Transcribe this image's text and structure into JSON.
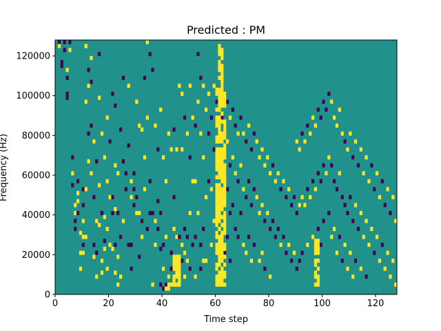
{
  "chart_data": {
    "type": "heatmap",
    "title": "Predicted : PM",
    "xlabel": "Time step",
    "ylabel": "Frequency (Hz)",
    "xlim": [
      0,
      128
    ],
    "ylim": [
      0,
      128000
    ],
    "x_ticks": [
      0,
      20,
      40,
      60,
      80,
      100,
      120
    ],
    "x_tick_labels": [
      "0",
      "20",
      "40",
      "60",
      "80",
      "100",
      "120"
    ],
    "y_ticks": [
      0,
      20000,
      40000,
      60000,
      80000,
      100000,
      120000
    ],
    "y_tick_labels": [
      "0",
      "20000",
      "40000",
      "60000",
      "80000",
      "100000",
      "120000"
    ],
    "n_time_steps": 128,
    "n_freq_bins": 64,
    "colormap": "viridis",
    "values_legend": {
      "low": 0,
      "mid": 1,
      "high": 2
    },
    "colors": {
      "low": "#440154",
      "mid": "#21918c",
      "high": "#fde725"
    },
    "background_value": 1,
    "cells": [
      {
        "t": 1,
        "f": [
          63,
          62
        ]
      },
      {
        "t": 2,
        "f": [
          58,
          57
        ]
      },
      {
        "t": 3,
        "f": [
          63,
          61
        ]
      },
      {
        "t": 4,
        "f": [
          56,
          54,
          50,
          49
        ]
      },
      {
        "t": 5,
        "f": [
          63,
          61
        ]
      },
      {
        "t": 6,
        "f": [
          34,
          30,
          27
        ]
      },
      {
        "t": 7,
        "f": [
          22,
          20,
          18,
          16
        ]
      },
      {
        "t": 8,
        "f": [
          28,
          25,
          23,
          20
        ]
      },
      {
        "t": 9,
        "f": [
          15,
          10,
          6
        ]
      },
      {
        "t": 10,
        "f": [
          26,
          22,
          18,
          14,
          12,
          10
        ]
      },
      {
        "t": 11,
        "f": [
          62,
          48,
          26,
          14
        ]
      },
      {
        "t": 12,
        "f": [
          56,
          52,
          40,
          33
        ]
      },
      {
        "t": 13,
        "f": [
          59,
          53,
          42,
          30
        ]
      },
      {
        "t": 14,
        "f": [
          38,
          24,
          12,
          9
        ]
      },
      {
        "t": 15,
        "f": [
          33,
          18,
          10,
          4
        ]
      },
      {
        "t": 16,
        "f": [
          60,
          49,
          27,
          17
        ]
      },
      {
        "t": 17,
        "f": [
          40,
          20,
          8,
          5
        ]
      },
      {
        "t": 18,
        "f": [
          34,
          19,
          13,
          11
        ]
      },
      {
        "t": 19,
        "f": [
          44,
          28,
          16,
          6
        ]
      },
      {
        "t": 20,
        "f": [
          38,
          24,
          12
        ]
      },
      {
        "t": 21,
        "f": [
          50,
          24,
          20,
          11
        ]
      },
      {
        "t": 22,
        "f": [
          47,
          32,
          21,
          12,
          5
        ]
      },
      {
        "t": 23,
        "f": [
          30,
          20,
          9,
          2
        ]
      },
      {
        "t": 24,
        "f": [
          41,
          14,
          4
        ]
      },
      {
        "t": 25,
        "f": [
          54,
          33,
          18
        ]
      },
      {
        "t": 26,
        "f": [
          30,
          26
        ]
      },
      {
        "t": 27,
        "f": [
          52,
          37,
          12
        ]
      },
      {
        "t": 28,
        "f": [
          28,
          24,
          12,
          6
        ]
      },
      {
        "t": 29,
        "f": [
          30,
          26,
          22
        ]
      },
      {
        "t": 30,
        "f": [
          48,
          24,
          20
        ]
      },
      {
        "t": 31,
        "f": [
          42,
          20,
          9
        ]
      },
      {
        "t": 32,
        "f": [
          41,
          18,
          14
        ]
      },
      {
        "t": 33,
        "f": [
          54,
          34,
          26
        ]
      },
      {
        "t": 34,
        "f": [
          63,
          44,
          16
        ]
      },
      {
        "t": 35,
        "f": [
          60,
          28,
          20
        ]
      },
      {
        "t": 36,
        "f": [
          56,
          20,
          2
        ]
      },
      {
        "t": 37,
        "f": [
          42,
          18,
          12
        ]
      },
      {
        "t": 38,
        "f": [
          36,
          23,
          16
        ]
      },
      {
        "t": 39,
        "f": [
          46,
          20,
          11,
          2
        ]
      },
      {
        "t": 40,
        "f": [
          34,
          12,
          6,
          1
        ]
      },
      {
        "t": 41,
        "f": [
          28,
          14,
          2,
          1
        ]
      },
      {
        "t": 42,
        "f": [
          40,
          4,
          2,
          1
        ]
      },
      {
        "t": 43,
        "f": [
          36,
          10,
          6,
          2
        ]
      },
      {
        "t": 44,
        "f": [
          41,
          24,
          16,
          8
        ]
      },
      {
        "t": 45,
        "f": [
          36,
          14,
          8,
          4
        ]
      },
      {
        "t": 46,
        "f": [
          52,
          14,
          8,
          4
        ]
      },
      {
        "t": 47,
        "f": [
          50,
          36,
          12,
          8
        ]
      },
      {
        "t": 48,
        "f": [
          44,
          16,
          10,
          4
        ]
      },
      {
        "t": 49,
        "f": [
          40,
          14,
          8
        ]
      },
      {
        "t": 50,
        "f": [
          52,
          34,
          20,
          6
        ]
      },
      {
        "t": 51,
        "f": [
          44,
          28,
          12
        ]
      },
      {
        "t": 52,
        "f": [
          42,
          28,
          14,
          4
        ]
      },
      {
        "t": 53,
        "f": [
          60,
          48,
          20
        ]
      },
      {
        "t": 54,
        "f": [
          54,
          40,
          12,
          6
        ]
      },
      {
        "t": 55,
        "f": [
          52,
          34,
          16,
          8
        ]
      },
      {
        "t": 56,
        "f": [
          46,
          24,
          8
        ]
      },
      {
        "t": 57,
        "f": [
          50,
          40,
          28
        ]
      },
      {
        "t": 58,
        "f": [
          44,
          26,
          12
        ]
      },
      {
        "t": 59,
        "f": [
          52,
          36,
          18
        ]
      },
      {
        "t": 60,
        "f": [
          48,
          38,
          26,
          10
        ]
      },
      {
        "t": 61,
        "f": [
          50,
          40,
          30,
          20,
          10
        ]
      },
      {
        "t": 62,
        "f": [
          52,
          44,
          34,
          24,
          14,
          4
        ]
      },
      {
        "t": 63,
        "f": [
          50,
          40,
          30,
          20,
          10
        ]
      },
      {
        "t": 64,
        "f": [
          48,
          38,
          26,
          14
        ]
      },
      {
        "t": 65,
        "f": [
          44,
          32,
          20,
          8
        ]
      },
      {
        "t": 66,
        "f": [
          46,
          34,
          22
        ]
      },
      {
        "t": 67,
        "f": [
          42,
          30,
          16
        ]
      },
      {
        "t": 68,
        "f": [
          40,
          28,
          14
        ]
      },
      {
        "t": 69,
        "f": [
          44,
          32,
          20
        ]
      },
      {
        "t": 70,
        "f": [
          40,
          26,
          12
        ]
      },
      {
        "t": 71,
        "f": [
          38,
          24,
          10
        ]
      },
      {
        "t": 72,
        "f": [
          42,
          28,
          14
        ]
      },
      {
        "t": 73,
        "f": [
          36,
          22,
          8
        ]
      },
      {
        "t": 74,
        "f": [
          40,
          26,
          12
        ]
      },
      {
        "t": 75,
        "f": [
          38,
          24
        ]
      },
      {
        "t": 76,
        "f": [
          34,
          20,
          8
        ]
      },
      {
        "t": 77,
        "f": [
          36,
          22,
          10
        ]
      },
      {
        "t": 78,
        "f": [
          32,
          18,
          6
        ]
      },
      {
        "t": 79,
        "f": [
          34,
          20
        ]
      },
      {
        "t": 80,
        "f": [
          30,
          16,
          4
        ]
      },
      {
        "t": 81,
        "f": [
          32,
          18
        ]
      },
      {
        "t": 82,
        "f": [
          28,
          14
        ]
      },
      {
        "t": 83,
        "f": [
          30,
          16
        ]
      },
      {
        "t": 84,
        "f": [
          26,
          12
        ]
      },
      {
        "t": 85,
        "f": [
          28,
          14
        ]
      },
      {
        "t": 86,
        "f": [
          24,
          10
        ]
      },
      {
        "t": 87,
        "f": [
          26,
          12
        ]
      },
      {
        "t": 88,
        "f": [
          22,
          8
        ]
      },
      {
        "t": 89,
        "f": [
          24,
          10
        ]
      },
      {
        "t": 90,
        "f": [
          38,
          20,
          6
        ]
      },
      {
        "t": 91,
        "f": [
          36,
          22,
          8
        ]
      },
      {
        "t": 92,
        "f": [
          40,
          24,
          10
        ]
      },
      {
        "t": 93,
        "f": [
          38,
          22
        ]
      },
      {
        "t": 94,
        "f": [
          42,
          26,
          12
        ]
      },
      {
        "t": 95,
        "f": [
          40,
          24
        ]
      },
      {
        "t": 96,
        "f": [
          44,
          28,
          14
        ]
      },
      {
        "t": 97,
        "f": [
          42,
          26,
          10
        ]
      },
      {
        "t": 98,
        "f": [
          46,
          30,
          16
        ]
      },
      {
        "t": 99,
        "f": [
          44,
          28,
          12
        ]
      },
      {
        "t": 100,
        "f": [
          48,
          32,
          18
        ]
      },
      {
        "t": 101,
        "f": [
          46,
          30
        ]
      },
      {
        "t": 102,
        "f": [
          50,
          34,
          20
        ]
      },
      {
        "t": 103,
        "f": [
          48,
          32,
          14
        ]
      },
      {
        "t": 104,
        "f": [
          44,
          28,
          16
        ]
      },
      {
        "t": 105,
        "f": [
          42,
          26,
          10
        ]
      },
      {
        "t": 106,
        "f": [
          46,
          30,
          14
        ]
      },
      {
        "t": 107,
        "f": [
          40,
          24,
          8
        ]
      },
      {
        "t": 108,
        "f": [
          38,
          22,
          12
        ]
      },
      {
        "t": 109,
        "f": [
          36,
          20,
          6
        ]
      },
      {
        "t": 110,
        "f": [
          40,
          24,
          10
        ]
      },
      {
        "t": 111,
        "f": [
          34,
          18,
          4
        ]
      },
      {
        "t": 112,
        "f": [
          38,
          22,
          8
        ]
      },
      {
        "t": 113,
        "f": [
          32,
          16
        ]
      },
      {
        "t": 114,
        "f": [
          36,
          20,
          6
        ]
      },
      {
        "t": 115,
        "f": [
          30,
          14
        ]
      },
      {
        "t": 116,
        "f": [
          34,
          18,
          4
        ]
      },
      {
        "t": 117,
        "f": [
          28,
          12
        ]
      },
      {
        "t": 118,
        "f": [
          32,
          16
        ]
      },
      {
        "t": 119,
        "f": [
          26,
          10
        ]
      },
      {
        "t": 120,
        "f": [
          30,
          14
        ]
      },
      {
        "t": 121,
        "f": [
          24,
          8
        ]
      },
      {
        "t": 122,
        "f": [
          28,
          12
        ]
      },
      {
        "t": 123,
        "f": [
          22,
          6
        ]
      },
      {
        "t": 124,
        "f": [
          26,
          10
        ]
      },
      {
        "t": 125,
        "f": [
          20,
          4
        ]
      },
      {
        "t": 126,
        "f": [
          24,
          8
        ]
      },
      {
        "t": 127,
        "f": [
          18,
          2
        ]
      }
    ],
    "yellow_bands": [
      {
        "t0": 60,
        "t1": 64,
        "f0": 2,
        "f1": 52
      },
      {
        "t0": 61,
        "t1": 63,
        "f0": 52,
        "f1": 64
      },
      {
        "t0": 44,
        "t1": 47,
        "f0": 2,
        "f1": 10
      },
      {
        "t0": 97,
        "t1": 99,
        "f0": 2,
        "f1": 14
      }
    ]
  }
}
